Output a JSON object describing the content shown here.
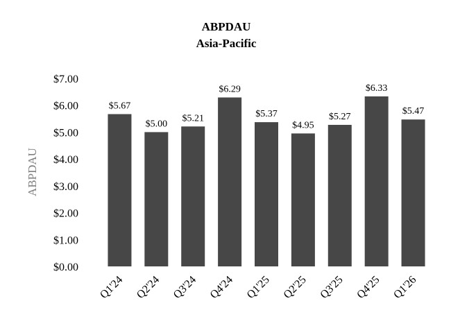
{
  "chart_data": {
    "type": "bar",
    "title": "ABPDAU",
    "subtitle": "Asia-Pacific",
    "ylabel": "ABPDAU",
    "xlabel": "",
    "categories": [
      "Q1'24",
      "Q2'24",
      "Q3'24",
      "Q4'24",
      "Q1'25",
      "Q2'25",
      "Q3'25",
      "Q4'25",
      "Q1'26"
    ],
    "values": [
      5.67,
      5.0,
      5.21,
      6.29,
      5.37,
      4.95,
      5.27,
      6.33,
      5.47
    ],
    "data_labels": [
      "$5.67",
      "$5.00",
      "$5.21",
      "$6.29",
      "$5.37",
      "$4.95",
      "$5.27",
      "$6.33",
      "$5.47"
    ],
    "ylim": [
      0,
      7
    ],
    "yticks": [
      {
        "value": 0,
        "label": "$0.00"
      },
      {
        "value": 1,
        "label": "$1.00"
      },
      {
        "value": 2,
        "label": "$2.00"
      },
      {
        "value": 3,
        "label": "$3.00"
      },
      {
        "value": 4,
        "label": "$4.00"
      },
      {
        "value": 5,
        "label": "$5.00"
      },
      {
        "value": 6,
        "label": "$6.00"
      },
      {
        "value": 7,
        "label": "$7.00"
      }
    ],
    "grid": false,
    "legend": "none",
    "bar_color": "#474747"
  }
}
